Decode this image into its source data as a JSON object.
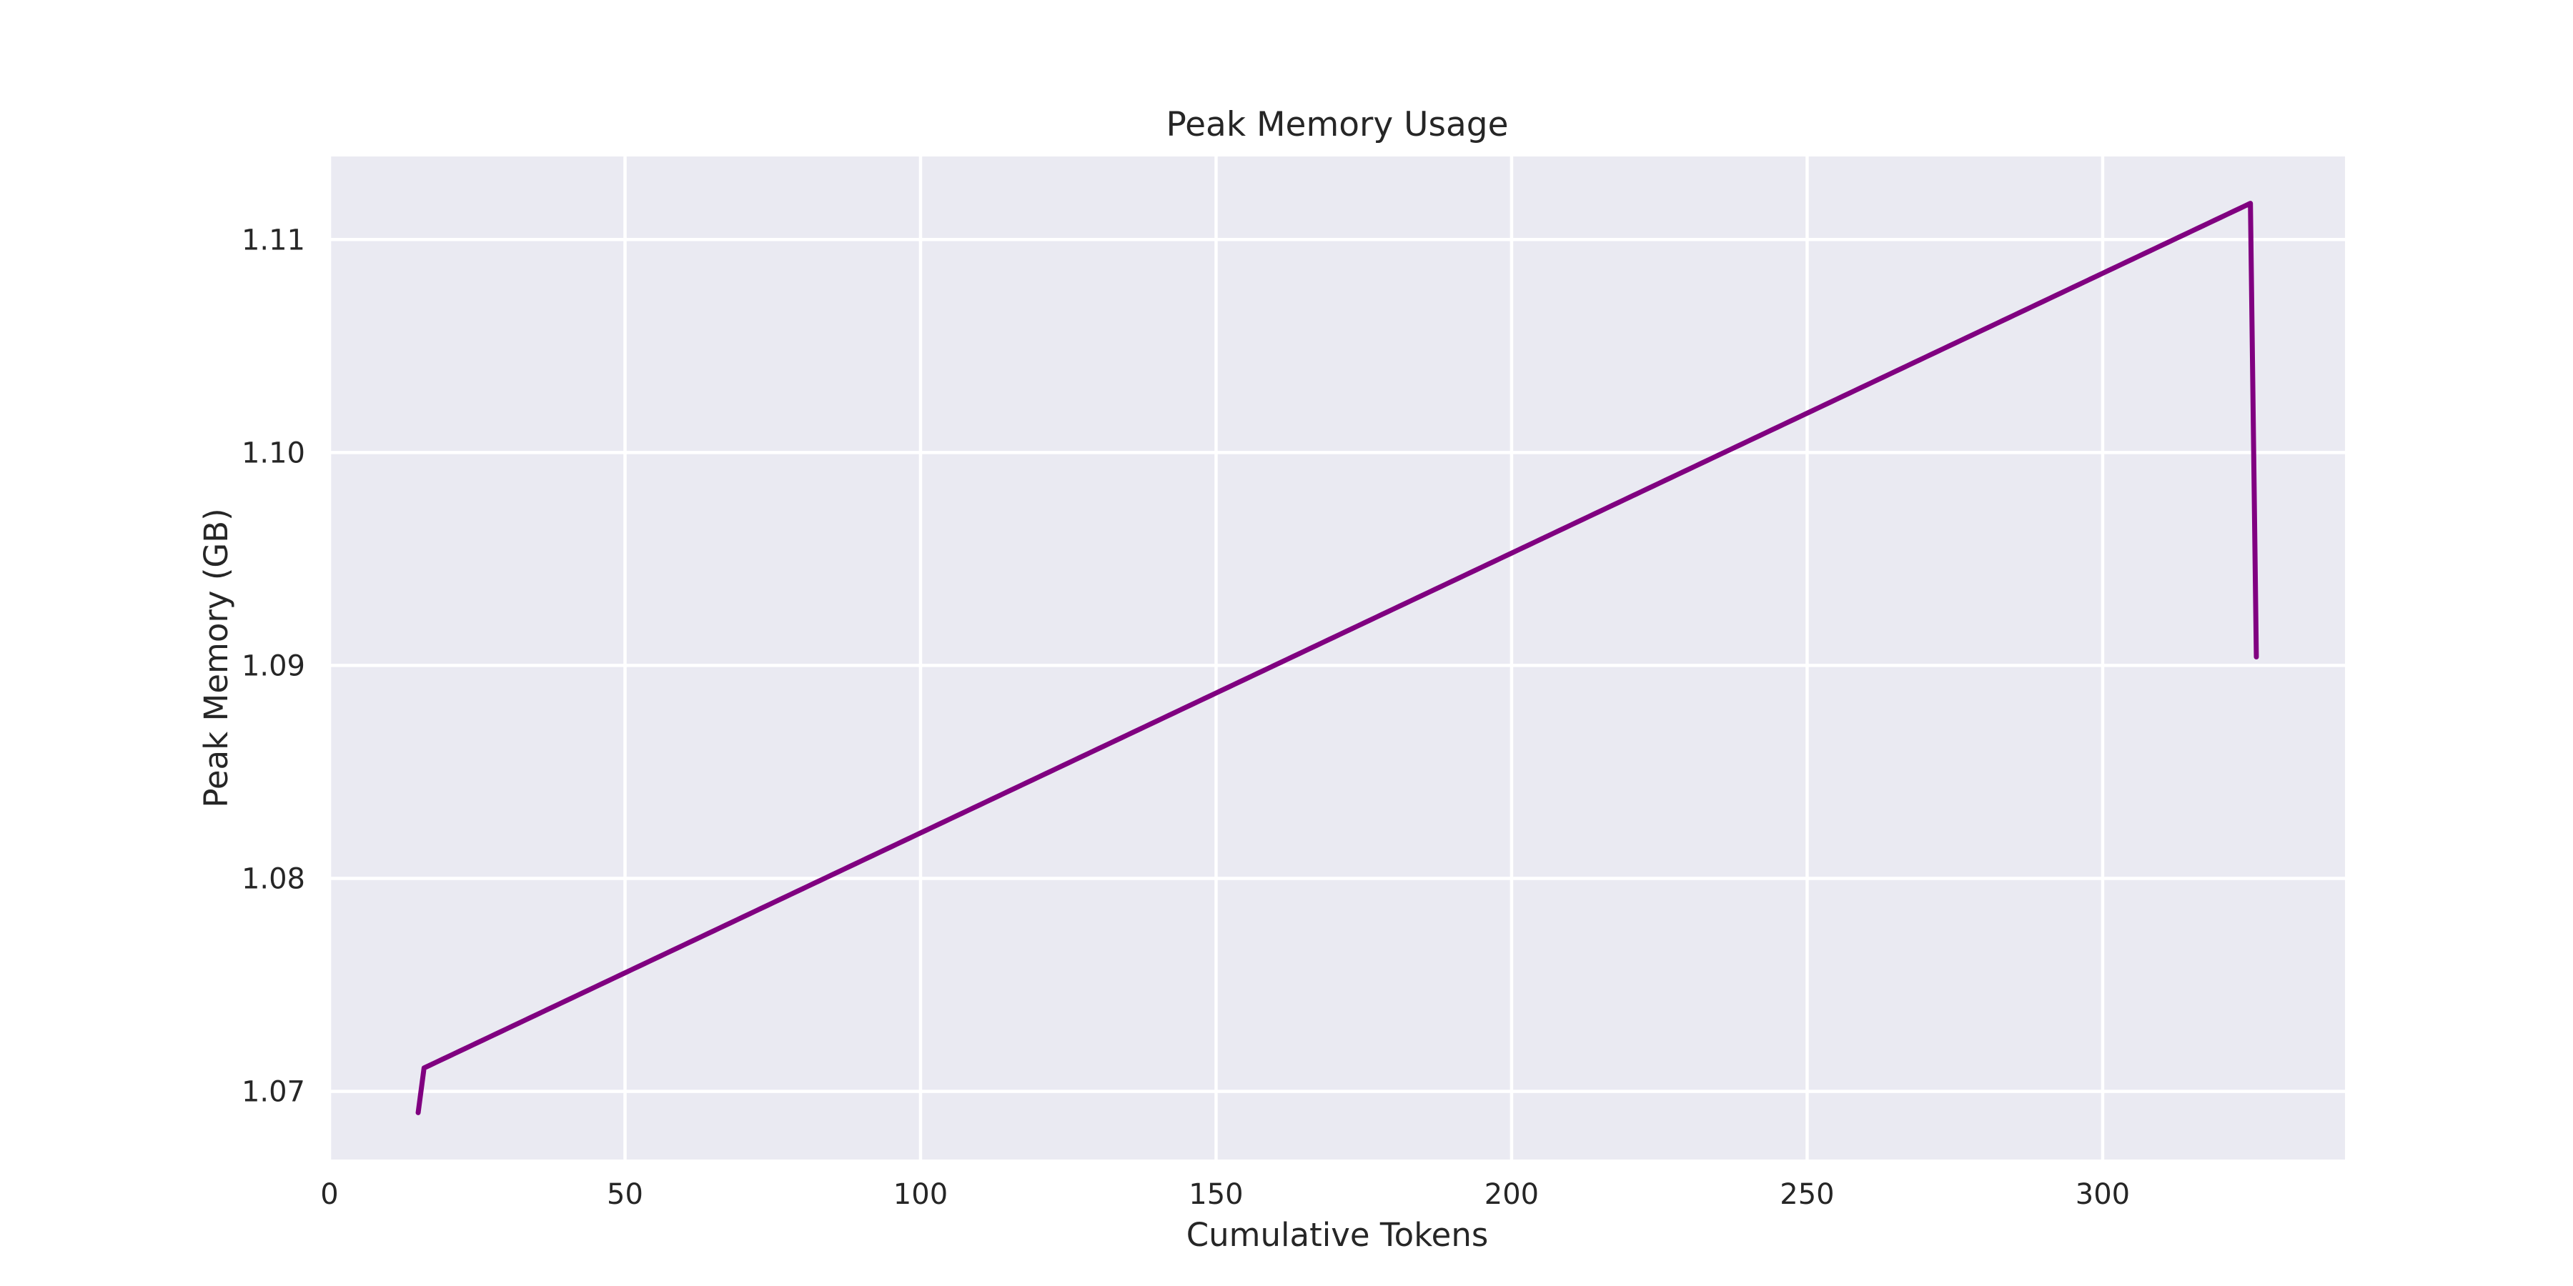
{
  "chart_data": {
    "type": "line",
    "title": "Peak Memory Usage",
    "xlabel": "Cumulative Tokens",
    "ylabel": "Peak Memory (GB)",
    "xlim": [
      0,
      341
    ],
    "ylim": [
      1.0668,
      1.1139
    ],
    "xticks": [
      0,
      50,
      100,
      150,
      200,
      250,
      300
    ],
    "yticks": [
      1.07,
      1.08,
      1.09,
      1.1,
      1.11
    ],
    "ytick_labels": [
      "1.07",
      "1.08",
      "1.09",
      "1.10",
      "1.11"
    ],
    "grid": true,
    "legend": "none",
    "series": [
      {
        "color": "#800080",
        "start": [
          15,
          1.069
        ],
        "ramp_from": [
          16,
          1.0711
        ],
        "ramp_to": [
          325,
          1.1117
        ],
        "ramp_step": 1,
        "end": [
          326,
          1.0904
        ]
      }
    ]
  }
}
